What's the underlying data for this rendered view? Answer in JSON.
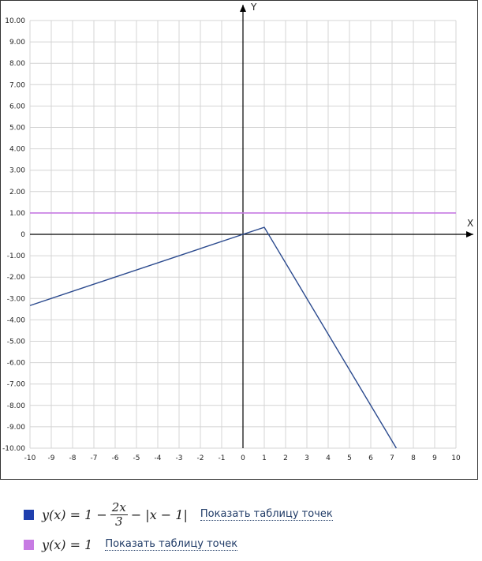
{
  "chart_data": {
    "type": "line",
    "xlabel": "X",
    "ylabel": "Y",
    "xlim": [
      -10,
      10
    ],
    "ylim": [
      -10,
      10
    ],
    "grid": true,
    "x_ticks": [
      "-10",
      "-9",
      "-8",
      "-7",
      "-6",
      "-5",
      "-4",
      "-3",
      "-2",
      "-1",
      "0",
      "1",
      "2",
      "3",
      "4",
      "5",
      "6",
      "7",
      "8",
      "9",
      "10"
    ],
    "y_ticks": [
      "10.00",
      "9.00",
      "8.00",
      "7.00",
      "6.00",
      "5.00",
      "4.00",
      "3.00",
      "2.00",
      "1.00",
      "0",
      "-1.00",
      "-2.00",
      "-3.00",
      "-4.00",
      "-5.00",
      "-6.00",
      "-7.00",
      "-8.00",
      "-9.00",
      "-10.00"
    ],
    "series": [
      {
        "name": "y(x) = 1 - 2x/3 - |x - 1|",
        "color": "#2b4a8e",
        "x": [
          -10,
          0,
          1,
          7.2
        ],
        "y": [
          -3.33,
          0,
          0.33,
          -10
        ]
      },
      {
        "name": "y(x) = 1",
        "color": "#c77be3",
        "x": [
          -10,
          10
        ],
        "y": [
          1,
          1
        ]
      }
    ]
  },
  "legend": [
    {
      "swatch_color": "#1f3fae",
      "formula_lhs": "y(x) = 1 −",
      "frac_num": "2x",
      "frac_den": "3",
      "formula_rhs": "− |x − 1|",
      "link": "Показать таблицу точек"
    },
    {
      "swatch_color": "#c77be3",
      "formula": "y(x) = 1",
      "link": "Показать таблицу точек"
    }
  ]
}
